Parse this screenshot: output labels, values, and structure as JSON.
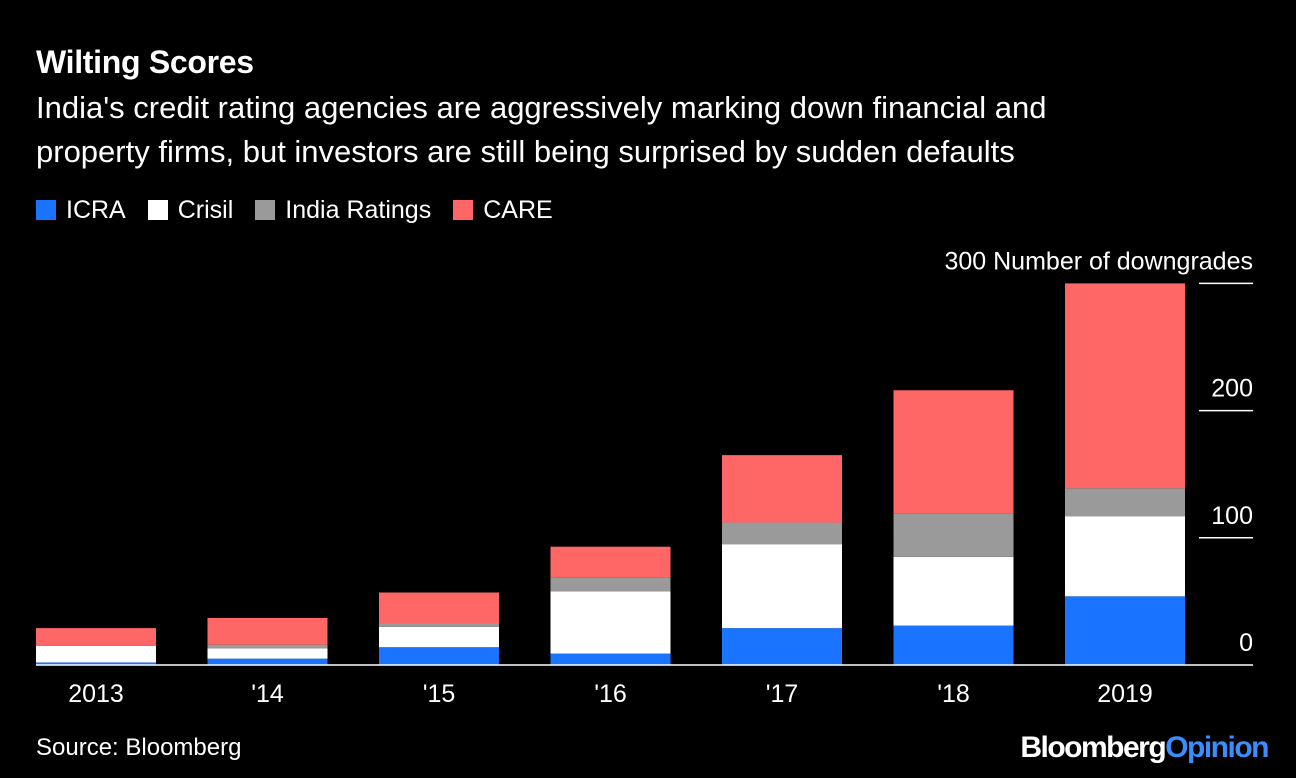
{
  "title": "Wilting Scores",
  "subtitle_lines": [
    "India's credit rating agencies are aggressively marking down financial and",
    "property firms, but investors are still being surprised by sudden defaults"
  ],
  "legend": [
    {
      "label": "ICRA",
      "color": "#1a74ff"
    },
    {
      "label": "Crisil",
      "color": "#ffffff"
    },
    {
      "label": "India Ratings",
      "color": "#9a9a9a"
    },
    {
      "label": "CARE",
      "color": "#ff6666"
    }
  ],
  "source": "Source: Bloomberg",
  "logo": {
    "part1": "Bloomberg",
    "part2": "Opinion"
  },
  "chart_data": {
    "type": "bar",
    "stacked": true,
    "categories": [
      "2013",
      "'14",
      "'15",
      "'16",
      "'17",
      "'18",
      "2019"
    ],
    "series": [
      {
        "name": "ICRA",
        "color": "#1a74ff",
        "values": [
          2,
          5,
          14,
          9,
          29,
          31,
          54
        ]
      },
      {
        "name": "Crisil",
        "color": "#ffffff",
        "values": [
          13,
          8,
          16,
          49,
          66,
          54,
          63
        ]
      },
      {
        "name": "India Ratings",
        "color": "#9a9a9a",
        "values": [
          0,
          3,
          3,
          11,
          17,
          34,
          22
        ]
      },
      {
        "name": "CARE",
        "color": "#ff6666",
        "values": [
          14,
          21,
          24,
          24,
          53,
          97,
          161
        ]
      }
    ],
    "y_ticks": [
      0,
      100,
      200,
      300
    ],
    "y_unit_label": "Number of downgrades",
    "ylim": [
      0,
      300
    ],
    "grid": false,
    "legend_position": "top-left"
  }
}
